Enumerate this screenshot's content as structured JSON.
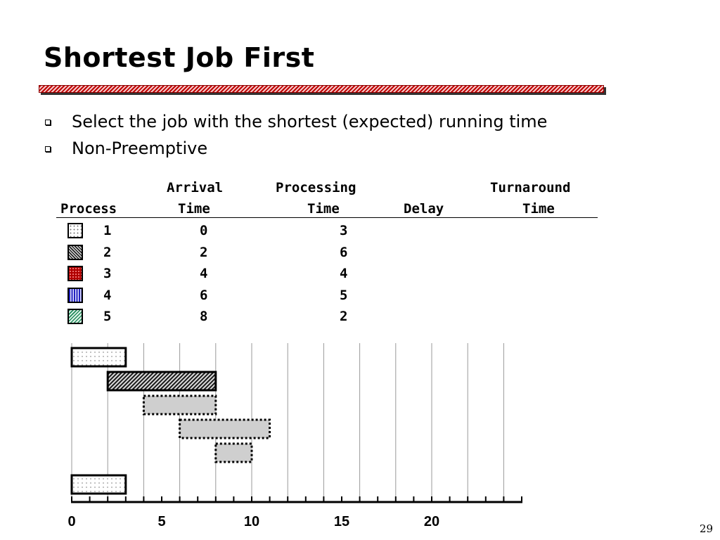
{
  "title": "Shortest Job First",
  "bullets": [
    "Select the job with the shortest (expected) running time",
    "Non-Preemptive"
  ],
  "table": {
    "headers": {
      "process": "Process",
      "arrival_1": "Arrival",
      "arrival_2": "Time",
      "processing_1": "Processing",
      "processing_2": "Time",
      "delay": "Delay",
      "turnaround_1": "Turnaround",
      "turnaround_2": "Time"
    },
    "rows": [
      {
        "process": "1",
        "arrival": "0",
        "processing": "3"
      },
      {
        "process": "2",
        "arrival": "2",
        "processing": "6"
      },
      {
        "process": "3",
        "arrival": "4",
        "processing": "4"
      },
      {
        "process": "4",
        "arrival": "6",
        "processing": "5"
      },
      {
        "process": "5",
        "arrival": "8",
        "processing": "2"
      }
    ]
  },
  "chart_data": {
    "type": "gantt",
    "x_ticks": [
      "0",
      "5",
      "10",
      "15",
      "20"
    ],
    "xlim": [
      0,
      25
    ],
    "grid": true,
    "bars": [
      {
        "process": "1",
        "start": 0,
        "end": 3,
        "style": "dots"
      },
      {
        "process": "2",
        "start": 2,
        "end": 8,
        "style": "hatch"
      },
      {
        "process": "3",
        "start": 4,
        "end": 8,
        "style": "gray-dotted"
      },
      {
        "process": "4",
        "start": 6,
        "end": 11,
        "style": "gray-dotted"
      },
      {
        "process": "5",
        "start": 8,
        "end": 10,
        "style": "gray-dotted"
      },
      {
        "process": "1",
        "start": 0,
        "end": 3,
        "style": "dots",
        "row": "schedule"
      }
    ]
  },
  "slide_number": "29"
}
